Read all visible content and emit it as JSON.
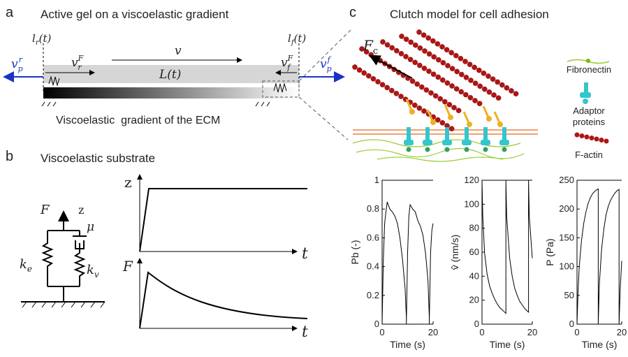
{
  "panel_a": {
    "letter": "a",
    "title": "Active gel on a viscoelastic gradient",
    "l_r": {
      "base": "l",
      "sub": "r",
      "tail": "(t)"
    },
    "l_f": {
      "base": "l",
      "sub": "f",
      "tail": "(t)"
    },
    "v": "v",
    "v_rF": {
      "base": "v",
      "sub": "r",
      "sup": "F"
    },
    "v_fF": {
      "base": "v",
      "sub": "f",
      "sup": "F"
    },
    "v_pr": {
      "base": "v",
      "sub": "p",
      "sup": "r"
    },
    "v_pf": {
      "base": "v",
      "sub": "p",
      "sup": "f"
    },
    "length": "L(t)",
    "caption": "Viscoelastic  gradient of the ECM"
  },
  "panel_b": {
    "letter": "b",
    "title": "Viscoelastic substrate",
    "force": "F",
    "disp": "z",
    "k_e": {
      "base": "k",
      "sub": "e"
    },
    "mu": "μ",
    "k_v": {
      "base": "k",
      "sub": "v"
    },
    "top_y": "z",
    "top_x": "t",
    "bottom_y": "F",
    "bottom_x": "t"
  },
  "panel_c": {
    "letter": "c",
    "title": "Clutch model for cell adhesion",
    "force": {
      "base": "F",
      "sub": "c"
    },
    "legend": {
      "fibronectin": "Fibronectin",
      "adaptor": [
        "Adaptor",
        "proteins"
      ],
      "actin": "F-actin"
    }
  },
  "plots": [
    {
      "type": "line",
      "ylabel": "Pb (-)",
      "xlabel": "Time (s)",
      "color": "#000000",
      "xlim": [
        0,
        20
      ],
      "xticks": [
        0,
        20
      ],
      "ylim": [
        0,
        1
      ],
      "yticks": [
        0,
        0.2,
        0.4,
        0.6,
        0.8,
        1
      ],
      "x": [
        0,
        0.5,
        1,
        1.5,
        2,
        3,
        4,
        5,
        6,
        7,
        8,
        8.5,
        9,
        9.5,
        9.5,
        10,
        10.5,
        11,
        12,
        13,
        14,
        15,
        16,
        17,
        17.5,
        18,
        18.5,
        18.5,
        19,
        19.5,
        20
      ],
      "values": [
        0,
        0.45,
        0.7,
        0.78,
        0.85,
        0.8,
        0.78,
        0.75,
        0.7,
        0.6,
        0.45,
        0.35,
        0.25,
        0.05,
        0,
        0.5,
        0.75,
        0.83,
        0.8,
        0.78,
        0.72,
        0.68,
        0.62,
        0.5,
        0.4,
        0.3,
        0.05,
        0,
        0.5,
        0.65,
        0.7
      ]
    },
    {
      "type": "line",
      "ylabel": "v̂ (nm/s)",
      "xlabel": "Time (s)",
      "color": "#000000",
      "xlim": [
        0,
        20
      ],
      "xticks": [
        0,
        20
      ],
      "ylim": [
        0,
        120
      ],
      "yticks": [
        0,
        20,
        40,
        60,
        80,
        100,
        120
      ],
      "x": [
        0,
        0.3,
        1,
        2,
        3,
        4,
        5,
        6,
        7,
        8,
        9,
        9.5,
        9.5,
        9.8,
        11,
        12,
        13,
        14,
        15,
        16,
        17,
        18,
        18.5,
        18.5,
        18.8,
        20
      ],
      "values": [
        120,
        90,
        60,
        42,
        32,
        26,
        21,
        17,
        14,
        12,
        10,
        9,
        120,
        90,
        55,
        40,
        30,
        24,
        19,
        16,
        13,
        11,
        10,
        120,
        90,
        55
      ]
    },
    {
      "type": "line",
      "ylabel": "P (Pa)",
      "xlabel": "Time (s)",
      "color": "#000000",
      "xlim": [
        0,
        20
      ],
      "xticks": [
        0,
        20
      ],
      "ylim": [
        0,
        250
      ],
      "yticks": [
        0,
        50,
        100,
        150,
        200,
        250
      ],
      "x": [
        0,
        0.5,
        1,
        2,
        3,
        4,
        5,
        6,
        7,
        8,
        9,
        9.5,
        9.5,
        10,
        11,
        12,
        13,
        14,
        15,
        16,
        17,
        18,
        18.8,
        18.8,
        19.3,
        20
      ],
      "values": [
        0,
        60,
        100,
        145,
        175,
        195,
        210,
        220,
        227,
        231,
        234,
        235,
        0,
        70,
        130,
        165,
        190,
        205,
        215,
        222,
        228,
        232,
        234,
        0,
        60,
        110
      ]
    }
  ]
}
